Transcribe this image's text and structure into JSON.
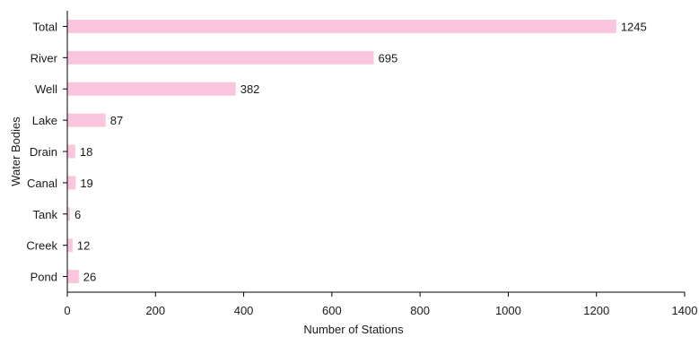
{
  "chart_data": {
    "type": "bar",
    "orientation": "horizontal",
    "categories": [
      "Total",
      "River",
      "Well",
      "Lake",
      "Drain",
      "Canal",
      "Tank",
      "Creek",
      "Pond"
    ],
    "values": [
      1245,
      695,
      382,
      87,
      18,
      19,
      6,
      12,
      26
    ],
    "data_labels": [
      "1245",
      "695",
      "382",
      "87",
      "18",
      "19",
      "6",
      "12",
      "26"
    ],
    "xlabel": "Number of Stations",
    "ylabel": "Water Bodies",
    "xlim": [
      0,
      1400
    ],
    "xticks": [
      0,
      200,
      400,
      600,
      800,
      1000,
      1200,
      1400
    ],
    "xtick_labels": [
      "0",
      "200",
      "400",
      "600",
      "800",
      "1000",
      "1200",
      "1400"
    ],
    "grid": false,
    "legend": "none",
    "bar_color": "#f9c6de"
  }
}
